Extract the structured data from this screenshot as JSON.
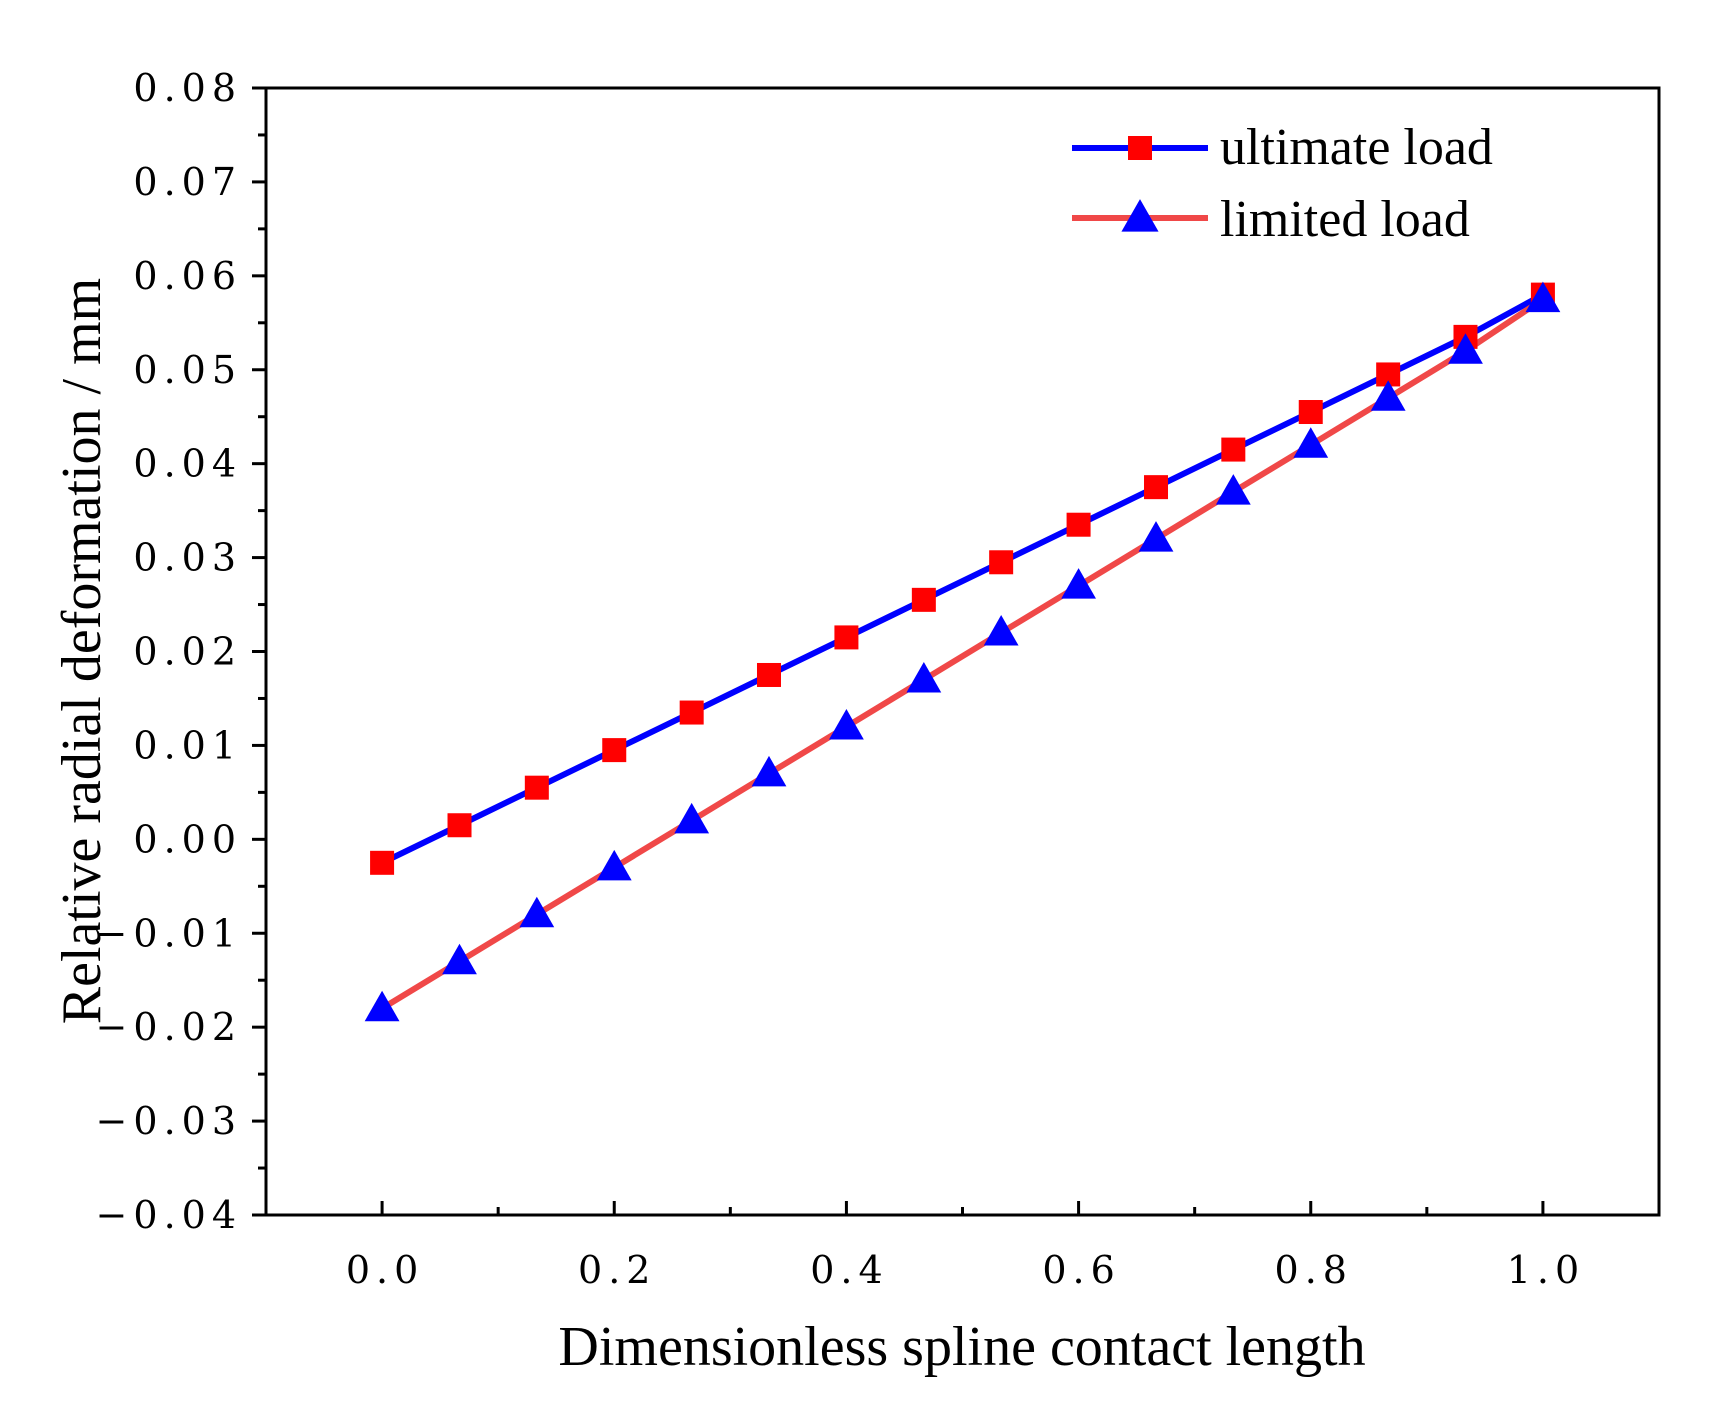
{
  "chart_data": {
    "type": "line",
    "title": "",
    "xlabel": "Dimensionless spline contact length",
    "ylabel": "Relative radial deformation / mm",
    "xlim": [
      -0.1,
      1.1
    ],
    "ylim": [
      -0.04,
      0.08
    ],
    "xticks": [
      0.0,
      0.2,
      0.4,
      0.6,
      0.8,
      1.0
    ],
    "xtick_labels": [
      "0.0",
      "0.2",
      "0.4",
      "0.6",
      "0.8",
      "1.0"
    ],
    "yticks": [
      -0.04,
      -0.03,
      -0.02,
      -0.01,
      0.0,
      0.01,
      0.02,
      0.03,
      0.04,
      0.05,
      0.06,
      0.07,
      0.08
    ],
    "ytick_labels": [
      "−0.04",
      "−0.03",
      "−0.02",
      "−0.01",
      "0.00",
      "0.01",
      "0.02",
      "0.03",
      "0.04",
      "0.05",
      "0.06",
      "0.07",
      "0.08"
    ],
    "grid": false,
    "legend_position": "top-right",
    "x": [
      0.0,
      0.0667,
      0.1333,
      0.2,
      0.2667,
      0.3333,
      0.4,
      0.4667,
      0.5333,
      0.6,
      0.6667,
      0.7333,
      0.8,
      0.8667,
      0.9333,
      1.0
    ],
    "series": [
      {
        "name": "ultimate load",
        "line_color": "#0000ff",
        "marker": "square",
        "marker_color": "#ff0000",
        "values": [
          -0.0025,
          0.0015,
          0.0055,
          0.0095,
          0.0135,
          0.0175,
          0.0215,
          0.0255,
          0.0295,
          0.0335,
          0.0375,
          0.0415,
          0.0455,
          0.0495,
          0.0535,
          0.058
        ]
      },
      {
        "name": "limited load",
        "line_color": "#f04848",
        "marker": "triangle",
        "marker_color": "#0000ff",
        "values": [
          -0.018,
          -0.013,
          -0.008,
          -0.003,
          0.002,
          0.007,
          0.012,
          0.017,
          0.022,
          0.027,
          0.032,
          0.037,
          0.042,
          0.047,
          0.052,
          0.0575
        ]
      }
    ]
  }
}
